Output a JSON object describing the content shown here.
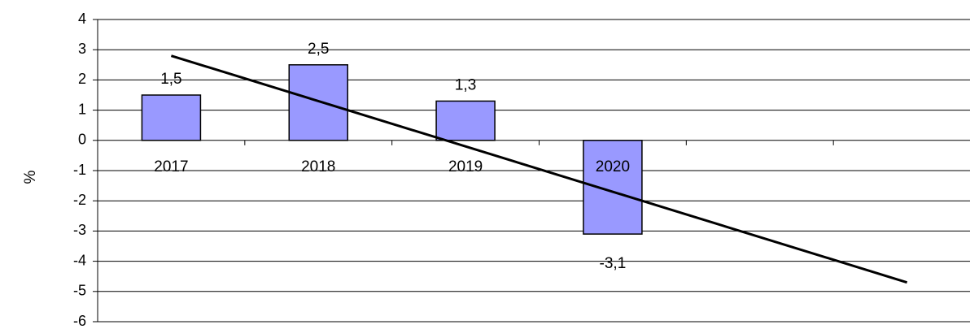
{
  "chart_data": {
    "type": "bar",
    "title": "",
    "xlabel": "",
    "ylabel": "%",
    "ylim": [
      -6,
      4
    ],
    "yticks": [
      4,
      3,
      2,
      1,
      0,
      -1,
      -2,
      -3,
      -4,
      -5,
      -6
    ],
    "grid": true,
    "categories": [
      "2017",
      "2018",
      "2019",
      "2020"
    ],
    "values": [
      1.5,
      2.5,
      1.3,
      -3.1
    ],
    "value_labels": [
      "1,5",
      "2,5",
      "1,3",
      "-3,1"
    ],
    "bar_color": "#9999ff",
    "bar_border": "#000000",
    "trendline": {
      "type": "linear",
      "x_range": [
        1,
        6
      ],
      "y_start": 2.8,
      "y_end": -4.7,
      "color": "#000000"
    },
    "category_slots": 6
  }
}
